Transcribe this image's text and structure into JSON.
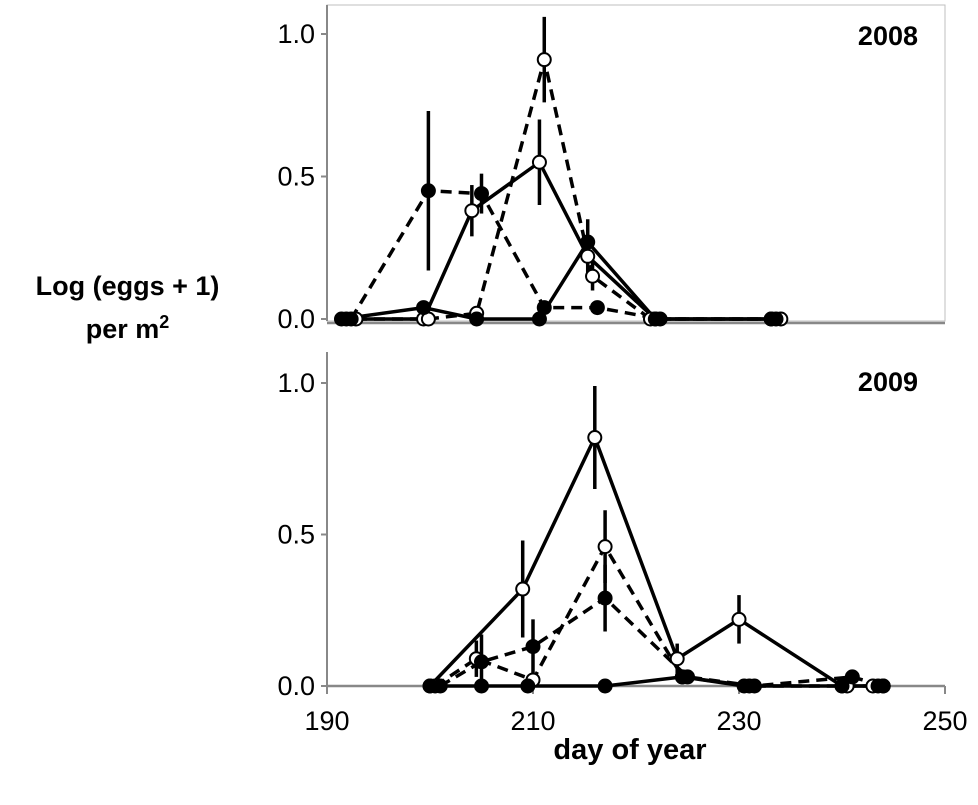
{
  "ylabel_line1": "Log (eggs + 1)",
  "ylabel_line2_prefix": "per m",
  "ylabel_line2_sup": "2",
  "xlabel": "day of year",
  "colors": {
    "ink": "#000000",
    "axis": "#888888",
    "frame": "#bfbfbf",
    "open_fill": "#ffffff"
  },
  "chart_data": [
    {
      "type": "line",
      "title": "2008",
      "xlim": [
        188,
        252
      ],
      "ylim": [
        0,
        1.0
      ],
      "yticks": [
        "0.0",
        "0.5",
        "1.0"
      ],
      "yticks_values": [
        0,
        0.5,
        1.0
      ],
      "frame": true,
      "series": [
        {
          "style": "solid",
          "marker": "open",
          "points": [
            {
              "x": 190,
              "y": 0
            },
            {
              "x": 198,
              "y": 0
            },
            {
              "x": 203,
              "y": 0.38,
              "err": 0.09
            },
            {
              "x": 210,
              "y": 0.55,
              "err": 0.15
            },
            {
              "x": 215,
              "y": 0.22,
              "err": 0.07
            },
            {
              "x": 222,
              "y": 0
            },
            {
              "x": 234,
              "y": 0
            }
          ]
        },
        {
          "style": "dashed",
          "marker": "open",
          "points": [
            {
              "x": 191,
              "y": 0
            },
            {
              "x": 198.5,
              "y": 0
            },
            {
              "x": 203.5,
              "y": 0.02
            },
            {
              "x": 210.5,
              "y": 0.91,
              "err": 0.15
            },
            {
              "x": 215.5,
              "y": 0.15,
              "err": 0.05
            },
            {
              "x": 221.5,
              "y": 0
            },
            {
              "x": 235,
              "y": 0
            }
          ]
        },
        {
          "style": "dashed",
          "marker": "filled",
          "points": [
            {
              "x": 190.5,
              "y": 0
            },
            {
              "x": 198.5,
              "y": 0.45,
              "err": 0.28
            },
            {
              "x": 204,
              "y": 0.44,
              "err": 0.07
            },
            {
              "x": 210.5,
              "y": 0.04
            },
            {
              "x": 216,
              "y": 0.04
            },
            {
              "x": 222.5,
              "y": 0
            },
            {
              "x": 234.5,
              "y": 0
            }
          ]
        },
        {
          "style": "solid",
          "marker": "filled",
          "points": [
            {
              "x": 189.5,
              "y": 0
            },
            {
              "x": 198,
              "y": 0.04
            },
            {
              "x": 203.5,
              "y": 0
            },
            {
              "x": 210,
              "y": 0
            },
            {
              "x": 215,
              "y": 0.27,
              "err": 0.08
            },
            {
              "x": 222,
              "y": 0
            },
            {
              "x": 234,
              "y": 0
            }
          ]
        }
      ]
    },
    {
      "type": "line",
      "title": "2009",
      "xlim": [
        190,
        250
      ],
      "ylim": [
        0,
        1.0
      ],
      "yticks": [
        "0.0",
        "0.5",
        "1.0"
      ],
      "yticks_values": [
        0,
        0.5,
        1.0
      ],
      "xticks": [
        "190",
        "210",
        "230",
        "250"
      ],
      "xticks_values": [
        190,
        210,
        230,
        250
      ],
      "frame": false,
      "series": [
        {
          "style": "solid",
          "marker": "open",
          "points": [
            {
              "x": 200,
              "y": 0
            },
            {
              "x": 209,
              "y": 0.32,
              "err": 0.16
            },
            {
              "x": 216,
              "y": 0.82,
              "err": 0.17
            },
            {
              "x": 224,
              "y": 0.09,
              "err": 0.05
            },
            {
              "x": 230,
              "y": 0.22,
              "err": 0.08
            },
            {
              "x": 240,
              "y": 0
            },
            {
              "x": 243,
              "y": 0
            }
          ]
        },
        {
          "style": "dashed",
          "marker": "open",
          "points": [
            {
              "x": 200.5,
              "y": 0
            },
            {
              "x": 204.5,
              "y": 0.09,
              "err": 0.06
            },
            {
              "x": 210,
              "y": 0.02
            },
            {
              "x": 217,
              "y": 0.46,
              "err": 0.12
            },
            {
              "x": 224.5,
              "y": 0.03
            },
            {
              "x": 231,
              "y": 0
            },
            {
              "x": 240.5,
              "y": 0
            },
            {
              "x": 244,
              "y": 0
            }
          ]
        },
        {
          "style": "dashed",
          "marker": "filled",
          "points": [
            {
              "x": 201,
              "y": 0
            },
            {
              "x": 205,
              "y": 0.08,
              "err": 0.09
            },
            {
              "x": 210,
              "y": 0.13,
              "err": 0.09
            },
            {
              "x": 217,
              "y": 0.29,
              "err": 0.11
            },
            {
              "x": 225,
              "y": 0.03
            },
            {
              "x": 231.5,
              "y": 0
            },
            {
              "x": 241,
              "y": 0.03
            },
            {
              "x": 244,
              "y": 0
            }
          ]
        },
        {
          "style": "solid",
          "marker": "filled",
          "points": [
            {
              "x": 200,
              "y": 0
            },
            {
              "x": 205,
              "y": 0
            },
            {
              "x": 209.5,
              "y": 0
            },
            {
              "x": 217,
              "y": 0
            },
            {
              "x": 224.5,
              "y": 0.03
            },
            {
              "x": 230.5,
              "y": 0
            },
            {
              "x": 240,
              "y": 0
            },
            {
              "x": 243.5,
              "y": 0
            }
          ]
        }
      ]
    }
  ]
}
